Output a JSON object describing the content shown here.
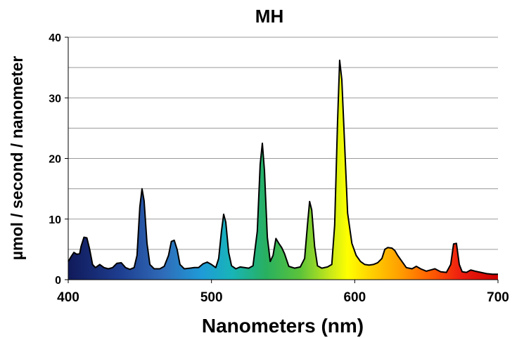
{
  "chart_data": {
    "type": "area",
    "title": "MH",
    "xlabel": "Nanometers (nm)",
    "ylabel": "µmol / second / nanometer",
    "xlim": [
      400,
      700
    ],
    "ylim": [
      0,
      40
    ],
    "x_ticks": [
      "400",
      "500",
      "600",
      "700"
    ],
    "y_ticks": [
      "0",
      "10",
      "20",
      "30",
      "40"
    ],
    "grid": "horizontal, every 5 units",
    "fill": "spectral gradient (violet to red) under curve, black outline",
    "series": [
      {
        "points": [
          [
            400,
            3.0
          ],
          [
            402,
            3.8
          ],
          [
            404,
            4.5
          ],
          [
            406,
            4.2
          ],
          [
            408,
            4.3
          ],
          [
            409,
            5.5
          ],
          [
            411,
            7.0
          ],
          [
            413,
            6.9
          ],
          [
            415,
            5.0
          ],
          [
            417,
            2.5
          ],
          [
            419,
            2.0
          ],
          [
            422,
            2.5
          ],
          [
            425,
            2.0
          ],
          [
            428,
            1.8
          ],
          [
            431,
            2.0
          ],
          [
            434,
            2.7
          ],
          [
            437,
            2.8
          ],
          [
            440,
            2.0
          ],
          [
            443,
            1.7
          ],
          [
            446,
            2.0
          ],
          [
            448,
            4.0
          ],
          [
            450,
            12.0
          ],
          [
            451.5,
            15.0
          ],
          [
            453,
            13.0
          ],
          [
            455,
            6.0
          ],
          [
            457,
            2.5
          ],
          [
            460,
            1.8
          ],
          [
            464,
            1.8
          ],
          [
            467,
            2.2
          ],
          [
            470,
            4.0
          ],
          [
            472,
            6.3
          ],
          [
            474,
            6.5
          ],
          [
            476,
            5.0
          ],
          [
            478,
            2.5
          ],
          [
            481,
            1.8
          ],
          [
            485,
            1.9
          ],
          [
            488,
            2.0
          ],
          [
            491,
            2.0
          ],
          [
            494,
            2.6
          ],
          [
            497,
            2.9
          ],
          [
            500,
            2.5
          ],
          [
            503,
            2.0
          ],
          [
            505,
            3.5
          ],
          [
            507,
            8.0
          ],
          [
            508.5,
            10.8
          ],
          [
            510,
            9.5
          ],
          [
            512,
            4.5
          ],
          [
            514,
            2.3
          ],
          [
            517,
            1.8
          ],
          [
            520,
            2.1
          ],
          [
            523,
            2.0
          ],
          [
            526,
            1.9
          ],
          [
            529,
            2.3
          ],
          [
            532,
            8.0
          ],
          [
            534,
            19.0
          ],
          [
            535.5,
            22.5
          ],
          [
            537,
            18.0
          ],
          [
            539,
            7.0
          ],
          [
            541,
            3.0
          ],
          [
            543,
            4.0
          ],
          [
            545,
            6.8
          ],
          [
            547,
            6.0
          ],
          [
            549,
            5.3
          ],
          [
            551,
            4.3
          ],
          [
            554,
            2.2
          ],
          [
            558,
            1.9
          ],
          [
            562,
            2.1
          ],
          [
            565,
            3.5
          ],
          [
            567,
            9.0
          ],
          [
            568.5,
            12.9
          ],
          [
            570,
            11.5
          ],
          [
            572,
            5.5
          ],
          [
            574,
            2.3
          ],
          [
            577,
            1.9
          ],
          [
            581,
            2.1
          ],
          [
            584,
            2.5
          ],
          [
            586,
            9.0
          ],
          [
            588,
            26.0
          ],
          [
            589.5,
            36.2
          ],
          [
            591,
            33.0
          ],
          [
            593,
            22.0
          ],
          [
            595,
            11.0
          ],
          [
            598,
            6.0
          ],
          [
            601,
            4.0
          ],
          [
            604,
            3.0
          ],
          [
            607,
            2.5
          ],
          [
            610,
            2.4
          ],
          [
            613,
            2.5
          ],
          [
            616,
            2.8
          ],
          [
            619,
            3.5
          ],
          [
            621,
            5.0
          ],
          [
            623,
            5.3
          ],
          [
            626,
            5.2
          ],
          [
            628,
            4.8
          ],
          [
            630,
            4.0
          ],
          [
            633,
            3.0
          ],
          [
            636,
            2.0
          ],
          [
            640,
            1.8
          ],
          [
            643,
            2.2
          ],
          [
            646,
            1.8
          ],
          [
            650,
            1.4
          ],
          [
            653,
            1.6
          ],
          [
            656,
            1.8
          ],
          [
            660,
            1.3
          ],
          [
            664,
            1.2
          ],
          [
            667,
            2.5
          ],
          [
            669,
            5.9
          ],
          [
            671,
            6.0
          ],
          [
            673,
            2.5
          ],
          [
            675,
            1.3
          ],
          [
            678,
            1.2
          ],
          [
            681,
            1.6
          ],
          [
            684,
            1.4
          ],
          [
            688,
            1.2
          ],
          [
            692,
            1.0
          ],
          [
            696,
            0.9
          ],
          [
            700,
            0.9
          ]
        ]
      }
    ]
  }
}
